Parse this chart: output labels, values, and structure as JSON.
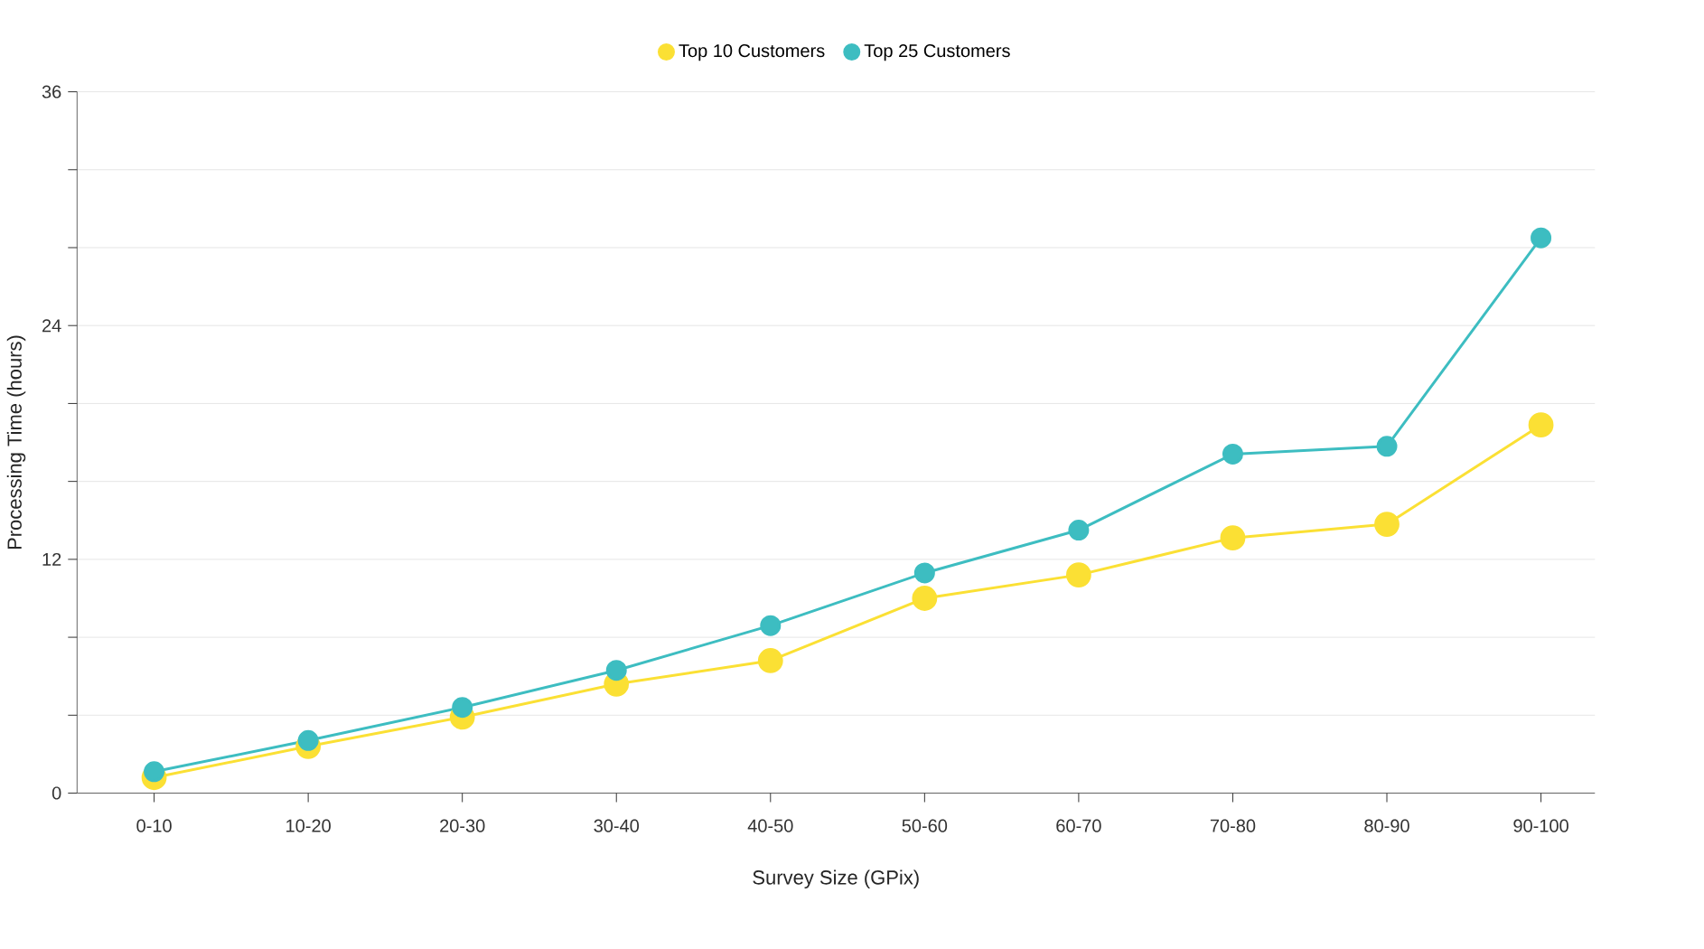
{
  "chart_data": {
    "type": "line",
    "xlabel": "Survey Size (GPix)",
    "ylabel": "Processing Time (hours)",
    "categories": [
      "0-10",
      "10-20",
      "20-30",
      "30-40",
      "40-50",
      "50-60",
      "60-70",
      "70-80",
      "80-90",
      "90-100"
    ],
    "series": [
      {
        "name": "Top 10 Customers",
        "color": "#fbe034",
        "values": [
          0.8,
          2.4,
          3.9,
          5.6,
          6.8,
          10.0,
          11.2,
          13.1,
          13.8,
          18.9
        ]
      },
      {
        "name": "Top 25 Customers",
        "color": "#3dbdc1",
        "values": [
          1.1,
          2.7,
          4.4,
          6.3,
          8.6,
          11.3,
          13.5,
          17.4,
          17.8,
          28.5
        ]
      }
    ],
    "ylim": [
      0,
      36
    ],
    "yticks": [
      0,
      {
        "value": 4,
        "label": null
      },
      {
        "value": 8,
        "label": null
      },
      12,
      {
        "value": 16,
        "label": null
      },
      {
        "value": 20,
        "label": null
      },
      24,
      {
        "value": 28,
        "label": null
      },
      {
        "value": 32,
        "label": null
      },
      36
    ],
    "grid": "y",
    "legend": "top",
    "marker": "circle",
    "line_style": "solid"
  }
}
